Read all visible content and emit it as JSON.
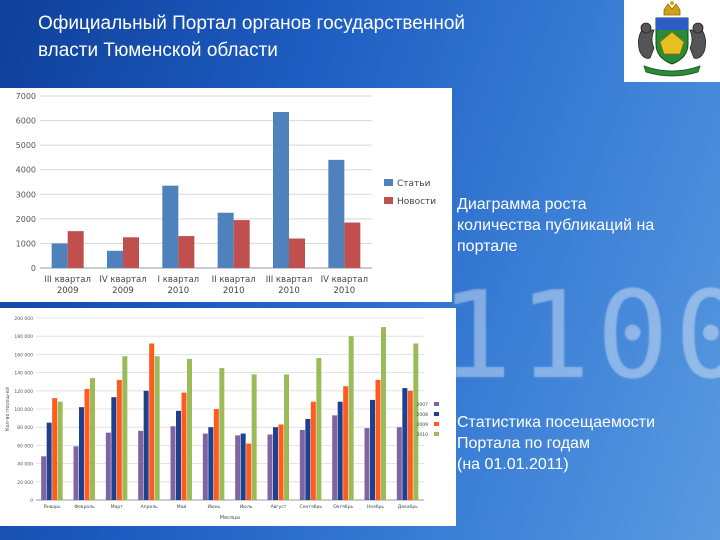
{
  "header": {
    "title_line1": "Официальный Портал органов государственной",
    "title_line2": "власти Тюменской области"
  },
  "background_digits": "1100",
  "captions": {
    "chart1_line1": "Диаграмма роста",
    "chart1_line2": "количества публикаций на",
    "chart1_line3": "портале",
    "chart2_line1": "Статистика посещаемости",
    "chart2_line2": "Портала по годам",
    "chart2_line3": "(на 01.01.2011)"
  },
  "colors": {
    "blue": "#4f81bd",
    "red": "#c0504d",
    "navy": "#1f3f8f",
    "orange": "#ff5a1f",
    "green": "#9bbb59",
    "purple": "#8064a2",
    "background": "#1d5cc0"
  },
  "chart_data": [
    {
      "type": "bar",
      "categories": [
        "III квартал 2009",
        "IV квартал 2009",
        "I квартал 2010",
        "II квартал 2010",
        "III квартал 2010",
        "IV квартал 2010"
      ],
      "category_lines": [
        [
          "III квартал",
          "2009"
        ],
        [
          "IV квартал",
          "2009"
        ],
        [
          "I квартал",
          "2010"
        ],
        [
          "II квартал",
          "2010"
        ],
        [
          "III квартал",
          "2010"
        ],
        [
          "IV квартал",
          "2010"
        ]
      ],
      "series": [
        {
          "name": "Статьи",
          "values": [
            1000,
            700,
            3350,
            2250,
            6350,
            4400
          ]
        },
        {
          "name": "Новости",
          "values": [
            1500,
            1250,
            1300,
            1950,
            1200,
            1850
          ]
        }
      ],
      "ylim": [
        0,
        7000
      ],
      "yticks": [
        "0",
        "1000",
        "2000",
        "3000",
        "4000",
        "5000",
        "6000",
        "7000"
      ],
      "grid": true,
      "legend": "right"
    },
    {
      "type": "bar",
      "categories": [
        "Январь",
        "Февраль",
        "Март",
        "Апрель",
        "Май",
        "Июнь",
        "Июль",
        "Август",
        "Сентябрь",
        "Октябрь",
        "Ноябрь",
        "Декабрь"
      ],
      "series": [
        {
          "name": "2007",
          "values": [
            48000,
            59000,
            74000,
            76000,
            81000,
            73000,
            71000,
            72000,
            77000,
            93000,
            79000,
            80000
          ]
        },
        {
          "name": "2008",
          "values": [
            85000,
            102000,
            113000,
            120000,
            98000,
            80000,
            73000,
            80000,
            89000,
            108000,
            110000,
            123000
          ]
        },
        {
          "name": "2009",
          "values": [
            112000,
            122000,
            132000,
            172000,
            118000,
            100000,
            62000,
            83000,
            108000,
            125000,
            132000,
            120000
          ]
        },
        {
          "name": "2010",
          "values": [
            108000,
            134000,
            158000,
            158000,
            155000,
            145000,
            138000,
            138000,
            156000,
            180000,
            190000,
            172000
          ]
        }
      ],
      "ylim": [
        0,
        200000
      ],
      "yticks": [
        "0",
        "20 000",
        "40 000",
        "60 000",
        "80 000",
        "100 000",
        "120 000",
        "140 000",
        "160 000",
        "180 000",
        "200 000"
      ],
      "ylabel": "Кол-во посещ-ей",
      "xlabel": "Месяцы",
      "grid": true,
      "legend": "right"
    }
  ]
}
